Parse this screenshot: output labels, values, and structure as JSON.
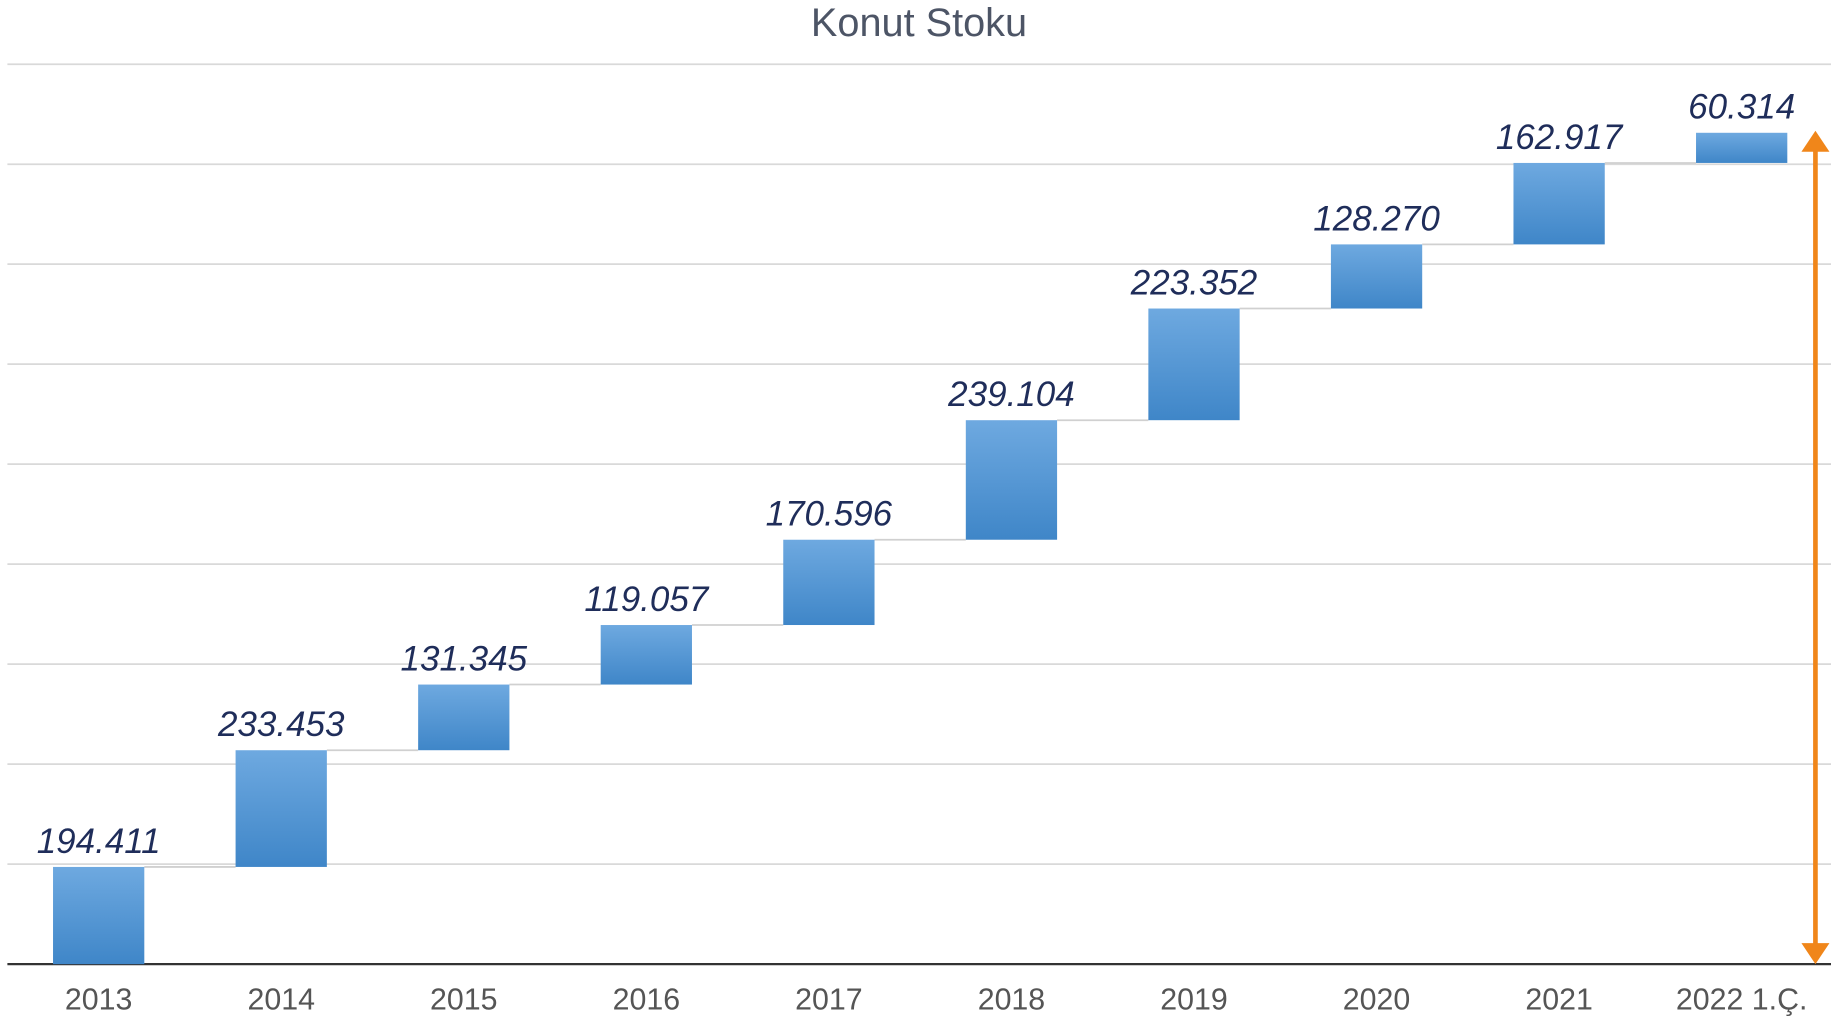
{
  "chart_data": {
    "type": "waterfall",
    "title": "Konut Stoku",
    "categories": [
      "2013",
      "2014",
      "2015",
      "2016",
      "2017",
      "2018",
      "2019",
      "2020",
      "2021",
      "2022 1.Ç."
    ],
    "values": [
      194411,
      233453,
      131345,
      119057,
      170596,
      239104,
      223352,
      128270,
      162917,
      60314
    ],
    "value_labels": [
      "194.411",
      "233.453",
      "131.345",
      "119.057",
      "170.596",
      "239.104",
      "223.352",
      "128.270",
      "162.917",
      "60.314"
    ],
    "color": "#4f94d4",
    "ylim": [
      0,
      1800000
    ],
    "yticks": [
      0,
      200000,
      400000,
      600000,
      800000,
      1000000,
      1200000,
      1400000,
      1600000,
      1800000
    ],
    "grid": true
  }
}
